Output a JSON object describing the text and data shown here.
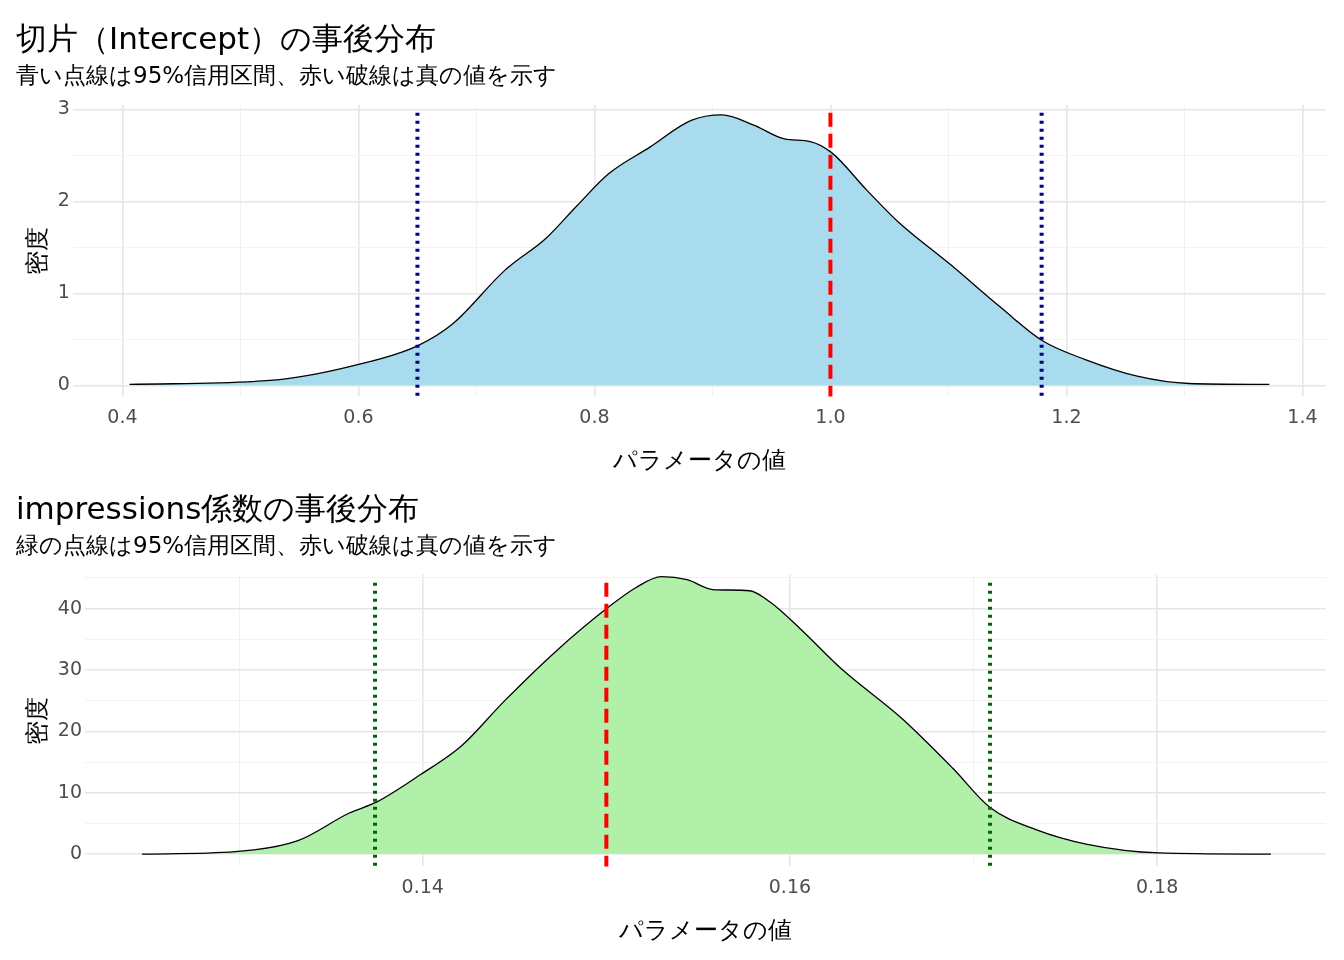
{
  "chart_data": [
    {
      "type": "area",
      "title": "切片（Intercept）の事後分布",
      "subtitle": "青い点線は95%信用区間、赤い破線は真の値を示す",
      "xlabel": "パラメータの値",
      "ylabel": "密度",
      "xlim": [
        0.358,
        1.42
      ],
      "xticks": [
        0.4,
        {
          "value": 0.5,
          "label": null
        },
        0.6,
        {
          "value": 0.7,
          "label": null
        },
        0.8,
        {
          "value": 0.9,
          "label": null
        },
        {
          "value": 1.0,
          "label": "1.0"
        },
        {
          "value": 1.1,
          "label": null
        },
        1.2,
        {
          "value": 1.3,
          "label": null
        },
        1.4
      ],
      "ylim": [
        -0.12,
        3.05
      ],
      "yticks": [
        0,
        {
          "value": 0.5,
          "label": null
        },
        1,
        {
          "value": 1.5,
          "label": null
        },
        2,
        {
          "value": 2.5,
          "label": null
        },
        3
      ],
      "grid": true,
      "legend": false,
      "series": [
        {
          "color": "#a8dbee",
          "x": [
            0.406,
            0.531,
            0.601,
            0.65,
            0.68,
            0.724,
            0.759,
            0.785,
            0.812,
            0.847,
            0.882,
            0.908,
            0.935,
            0.961,
            0.983,
            1.001,
            1.031,
            1.058,
            1.102,
            1.145,
            1.179,
            1.216,
            1.26,
            1.304,
            1.372
          ],
          "values": [
            0.01,
            0.06,
            0.23,
            0.43,
            0.67,
            1.25,
            1.6,
            1.95,
            2.3,
            2.59,
            2.88,
            2.94,
            2.83,
            2.68,
            2.65,
            2.53,
            2.12,
            1.77,
            1.31,
            0.84,
            0.49,
            0.28,
            0.1,
            0.02,
            0.01
          ]
        }
      ],
      "ref_lines": [
        {
          "axis": "x",
          "value": 0.65,
          "color": "#00008b",
          "line_style": "dotted"
        },
        {
          "axis": "x",
          "value": 1.179,
          "color": "#00008b",
          "line_style": "dotted"
        },
        {
          "axis": "x",
          "value": 1.0,
          "color": "#ff0000",
          "line_style": "dashed"
        }
      ]
    },
    {
      "type": "area",
      "title": "impressions係数の事後分布",
      "subtitle": "緑の点線は95%信用区間、赤い破線は真の値を示す",
      "xlabel": "パラメータの値",
      "ylabel": "密度",
      "xlim": [
        0.1216,
        0.1892
      ],
      "xticks": [
        {
          "value": 0.13,
          "label": null
        },
        0.14,
        {
          "value": 0.15,
          "label": null
        },
        0.16,
        {
          "value": 0.17,
          "label": null
        },
        0.18
      ],
      "ylim": [
        -2,
        45.5
      ],
      "yticks": [
        0,
        {
          "value": 5,
          "label": null
        },
        10,
        {
          "value": 15,
          "label": null
        },
        20,
        {
          "value": 25,
          "label": null
        },
        30,
        {
          "value": 35,
          "label": null
        },
        40,
        {
          "value": 45,
          "label": null
        }
      ],
      "grid": true,
      "legend": false,
      "series": [
        {
          "color": "#b0f0a8",
          "x": [
            0.1247,
            0.1298,
            0.1332,
            0.136,
            0.1375,
            0.1399,
            0.1421,
            0.1444,
            0.1472,
            0.1501,
            0.1516,
            0.153,
            0.1544,
            0.1558,
            0.1578,
            0.1589,
            0.1606,
            0.1628,
            0.1661,
            0.1689,
            0.1709,
            0.1734,
            0.1762,
            0.1801,
            0.1862
          ],
          "values": [
            0,
            0.4,
            2.2,
            6.7,
            8.5,
            13,
            17.6,
            24.8,
            32.9,
            40.2,
            43.4,
            45.2,
            44.7,
            43.1,
            42.9,
            41.1,
            36.6,
            30.2,
            22.1,
            13.9,
            7.6,
            4,
            1.6,
            0.2,
            0
          ]
        }
      ],
      "ref_lines": [
        {
          "axis": "x",
          "value": 0.1374,
          "color": "#006400",
          "line_style": "dotted"
        },
        {
          "axis": "x",
          "value": 0.1709,
          "color": "#006400",
          "line_style": "dotted"
        },
        {
          "axis": "x",
          "value": 0.15,
          "color": "#ff0000",
          "line_style": "dashed"
        }
      ]
    }
  ]
}
